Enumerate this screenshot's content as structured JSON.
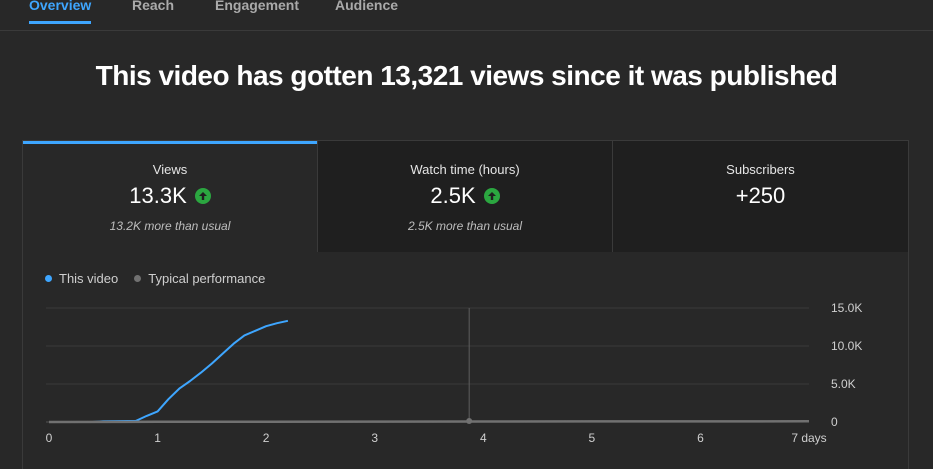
{
  "tabs": [
    {
      "label": "Overview",
      "active": true
    },
    {
      "label": "Reach",
      "active": false
    },
    {
      "label": "Engagement",
      "active": false
    },
    {
      "label": "Audience",
      "active": false
    }
  ],
  "headline": "This video has gotten 13,321 views since it was published",
  "metrics": [
    {
      "label": "Views",
      "value": "13.3K",
      "note": "13.2K more than usual",
      "trend": "up",
      "selected": true
    },
    {
      "label": "Watch time (hours)",
      "value": "2.5K",
      "note": "2.5K more than usual",
      "trend": "up",
      "selected": false
    },
    {
      "label": "Subscribers",
      "value": "+250",
      "note": "",
      "trend": "",
      "selected": false
    }
  ],
  "legend": [
    {
      "label": "This video",
      "color": "#3ea6ff"
    },
    {
      "label": "Typical performance",
      "color": "#717171"
    }
  ],
  "chart_data": {
    "type": "line",
    "x_ticks": [
      "0",
      "1",
      "2",
      "3",
      "4",
      "5",
      "6",
      "7 days"
    ],
    "y_ticks": [
      "15.0K",
      "10.0K",
      "5.0K",
      "0"
    ],
    "xlim": [
      0,
      7
    ],
    "ylim": [
      0,
      15000
    ],
    "cursor_x": 3.87,
    "series": [
      {
        "name": "This video",
        "color": "#3ea6ff",
        "x": [
          0,
          0.4,
          0.5,
          0.8,
          0.9,
          1.0,
          1.1,
          1.2,
          1.3,
          1.4,
          1.5,
          1.6,
          1.7,
          1.8,
          1.9,
          2.0,
          2.1,
          2.2
        ],
        "y": [
          0,
          0,
          100,
          150,
          800,
          1400,
          3000,
          4400,
          5400,
          6500,
          7700,
          9000,
          10300,
          11400,
          12000,
          12600,
          13000,
          13321
        ]
      },
      {
        "name": "Typical performance",
        "color": "#717171",
        "x": [
          0,
          1,
          2,
          3,
          4,
          5,
          6,
          7
        ],
        "y": [
          0,
          20,
          40,
          55,
          65,
          75,
          85,
          95
        ]
      }
    ]
  }
}
